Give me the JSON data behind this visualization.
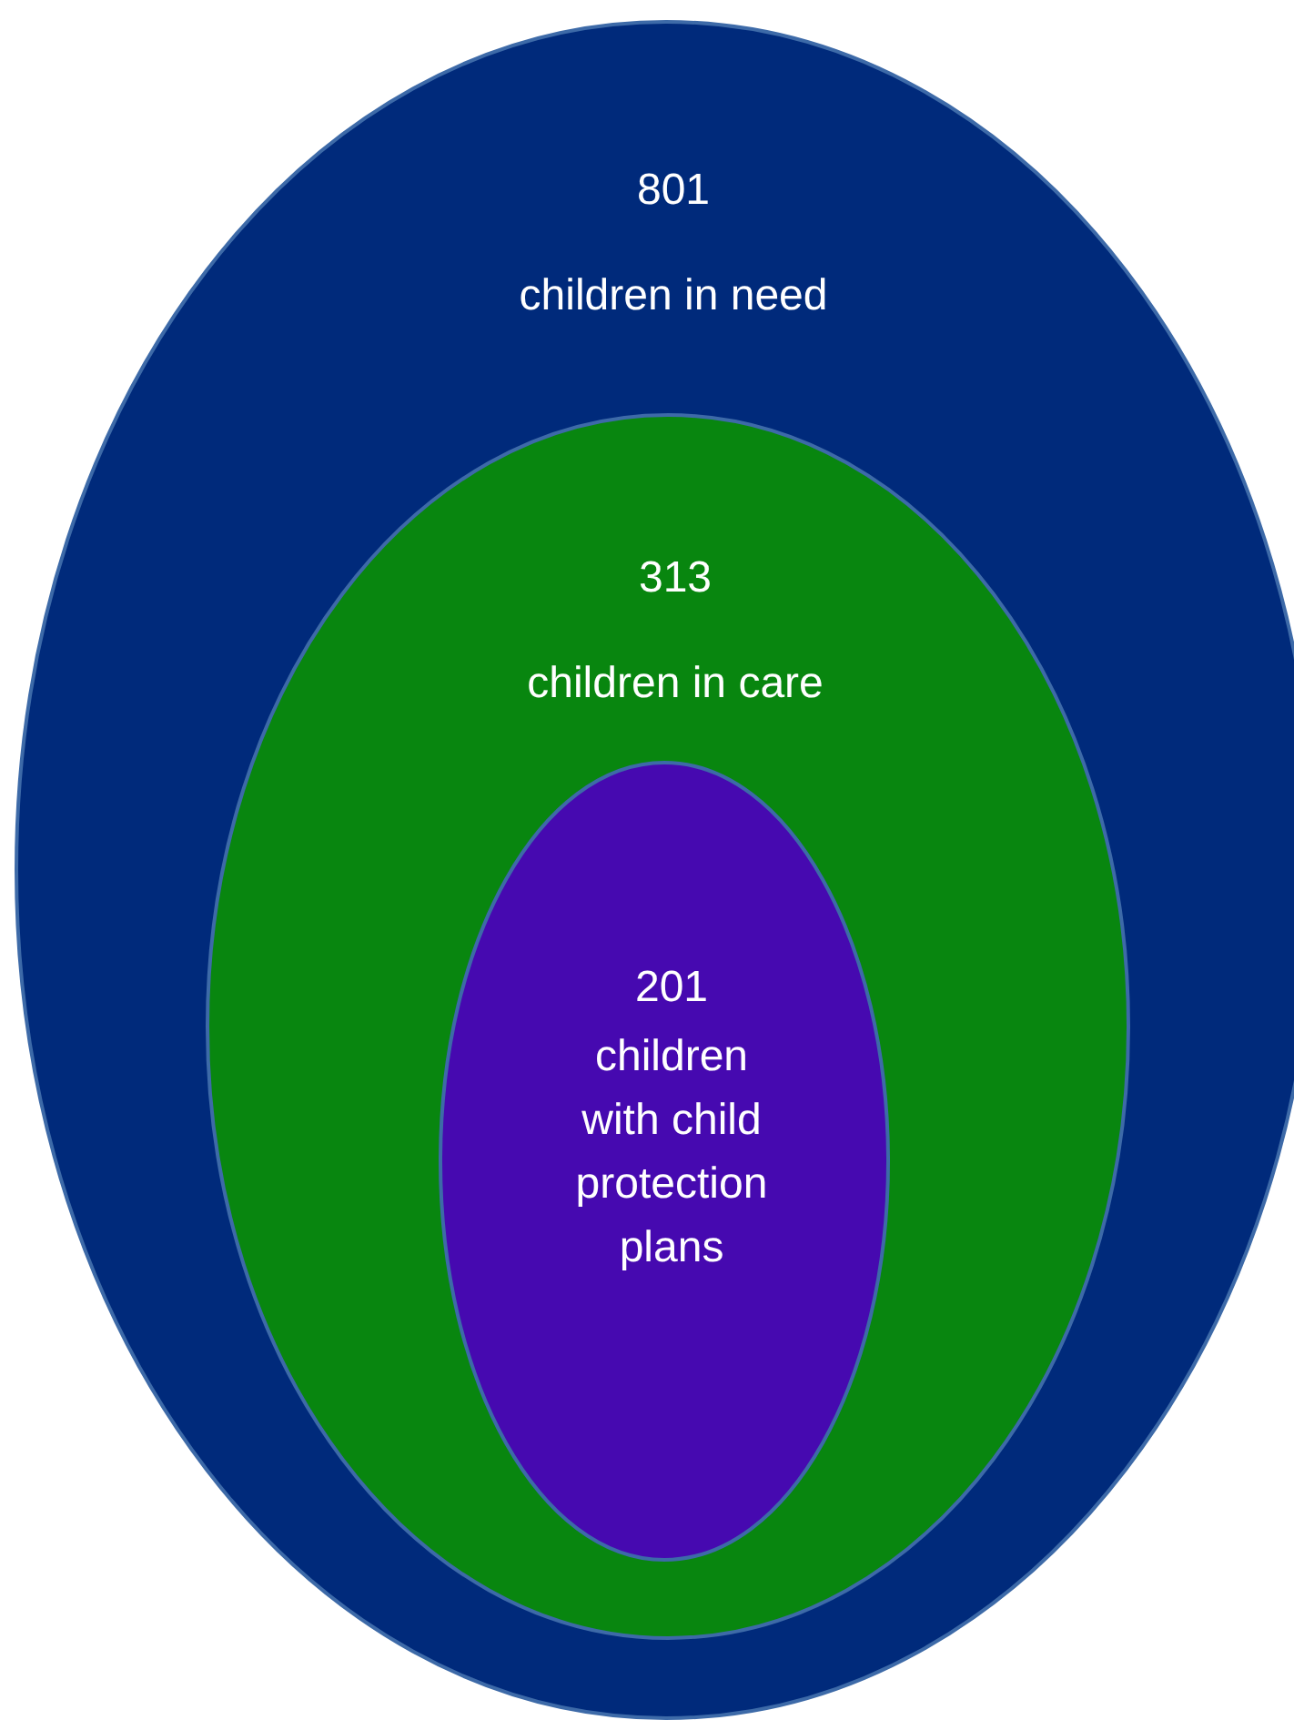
{
  "chart_data": {
    "type": "other",
    "data_labels": true,
    "categories": [
      "children in need",
      "children in care",
      "children with child protection plans"
    ],
    "values": [
      801,
      313,
      201
    ],
    "colors": [
      "#002a7b",
      "#08860f",
      "#4609b0"
    ]
  }
}
